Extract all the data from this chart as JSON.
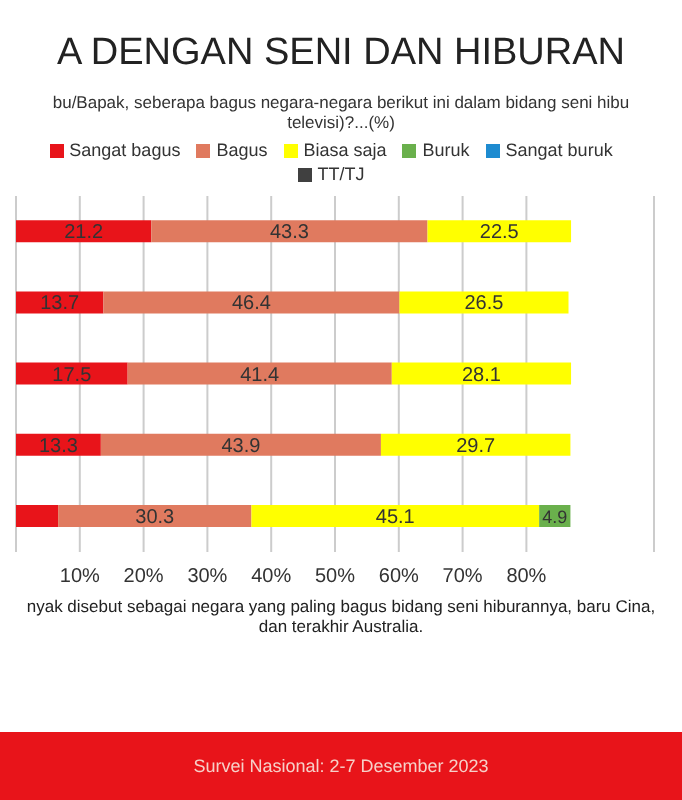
{
  "chart_data": {
    "type": "bar",
    "orientation": "horizontal",
    "stacked": true,
    "title": "A DENGAN SENI DAN HIBURAN",
    "subtitle": "bu/Bapak, seberapa bagus negara-negara berikut ini dalam bidang seni hibu televisi)?...(%)",
    "categories": [
      null,
      null,
      null,
      null,
      null
    ],
    "series": [
      {
        "name": "Sangat bagus",
        "color": "#e8141a",
        "values": [
          21.2,
          13.7,
          17.5,
          13.3,
          6.6
        ],
        "value_labels": [
          "21.2",
          "13.7",
          "17.5",
          "13.3",
          null
        ]
      },
      {
        "name": "Bagus",
        "color": "#e07a5f",
        "values": [
          43.3,
          46.4,
          41.4,
          43.9,
          30.3
        ],
        "value_labels": [
          "43.3",
          "46.4",
          "41.4",
          "43.9",
          "30.3"
        ]
      },
      {
        "name": "Biasa saja",
        "color": "#ffff00",
        "values": [
          22.5,
          26.5,
          28.1,
          29.7,
          45.1
        ],
        "value_labels": [
          "22.5",
          "26.5",
          "28.1",
          "29.7",
          "45.1"
        ]
      },
      {
        "name": "Buruk",
        "color": "#6ab04c",
        "values": [
          null,
          null,
          null,
          null,
          4.9
        ],
        "value_labels": [
          null,
          null,
          null,
          null,
          "4.9"
        ]
      },
      {
        "name": "Sangat buruk",
        "color": "#1e8bd0",
        "values": [
          null,
          null,
          null,
          null,
          null
        ]
      },
      {
        "name": "TT/TJ",
        "color": "#404040",
        "values": [
          null,
          null,
          null,
          null,
          null
        ]
      }
    ],
    "xlim": [
      0,
      100
    ],
    "xticks": [
      {
        "value": 10,
        "label": "10%"
      },
      {
        "value": 20,
        "label": "20%"
      },
      {
        "value": 30,
        "label": "30%"
      },
      {
        "value": 40,
        "label": "40%"
      },
      {
        "value": 50,
        "label": "50%"
      },
      {
        "value": 60,
        "label": "60%"
      },
      {
        "value": 70,
        "label": "70%"
      },
      {
        "value": 80,
        "label": "80%"
      }
    ],
    "grid": "x",
    "legend": "top",
    "annotations": [
      "nyak disebut sebagai negara yang paling bagus bidang seni hiburannya, baru Cina, dan terakhir Australia.",
      "Survei Nasional: 2-7 Desember 2023"
    ]
  }
}
